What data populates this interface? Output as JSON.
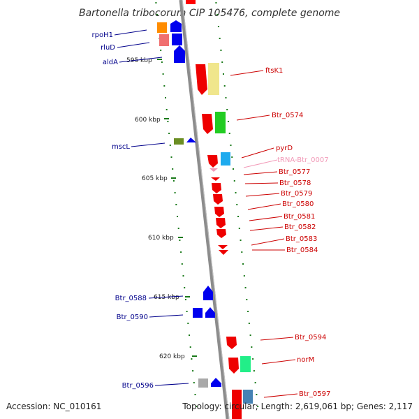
{
  "title": "Bartonella tribocorum CIP 105476, complete genome",
  "footer": {
    "accession": "Accession: NC_010161",
    "summary": "Topology: circular; Length: 2,619,061 bp; Genes: 2,117"
  },
  "ruler": [
    {
      "label": "595 kbp"
    },
    {
      "label": "600 kbp"
    },
    {
      "label": "605 kbp"
    },
    {
      "label": "610 kbp"
    },
    {
      "label": "615 kbp"
    },
    {
      "label": "620 kbp"
    }
  ],
  "labels_left": [
    "rpoH1",
    "rluD",
    "aldA",
    "mscL",
    "Btr_0588",
    "Btr_0590",
    "Btr_0596"
  ],
  "labels_right": [
    "ftsK1",
    "Btr_0574",
    "pyrD",
    "tRNA-Btr_0007",
    "Btr_0577",
    "Btr_0578",
    "Btr_0579",
    "Btr_0580",
    "Btr_0581",
    "Btr_0582",
    "Btr_0583",
    "Btr_0584",
    "Btr_0594",
    "norM",
    "Btr_0597"
  ],
  "colors": {
    "forward": "#ff0000",
    "reverse": "#0000ff",
    "backbone": "#8c8c8c",
    "tick": "#1a7a1a",
    "label_left": "#00008b",
    "label_right": "#cc0000",
    "trna": "#f29ab8"
  }
}
